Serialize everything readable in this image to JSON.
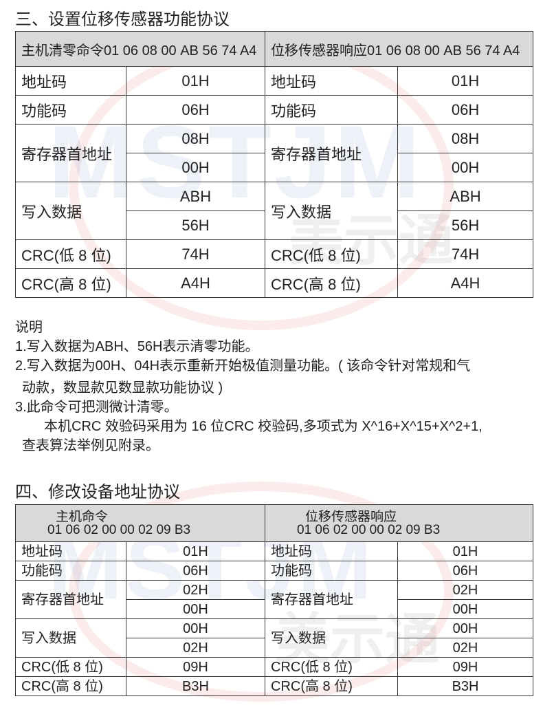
{
  "watermark": {
    "latin": "MSTJM",
    "cn": "美示通"
  },
  "section3": {
    "title": "三、设置位移传感器功能协议",
    "header": [
      "主机清零命令01 06 08 00 AB 56 74 A4",
      "位移传感器响应01 06 08 00 AB 56 74 A4"
    ],
    "rows": {
      "addr": "地址码",
      "addr_v": "01H",
      "func": "功能码",
      "func_v": "06H",
      "reg": "寄存器首地址",
      "reg_v1": "08H",
      "reg_v2": "00H",
      "data": "写入数据",
      "data_v1": "ABH",
      "data_v2": "56H",
      "crcl": "CRC(低 8 位)",
      "crcl_v": "74H",
      "crch": "CRC(高 8 位)",
      "crch_v": "A4H"
    }
  },
  "notes": {
    "title": "说明",
    "n1": "1.写入数据为ABH、56H表示清零功能。",
    "n2a": "2.写入数据为00H、04H表示重新开始极值测量功能。( 该命令针对常规和气",
    "n2b": "动款，数显款见数显款功能协议 )",
    "n3": "3.此命令可把测微计清零。",
    "n4a": "本机CRC 效验码采用为 16 位CRC 校验码,多项式为 X^16+X^15+X^2+1,",
    "n4b": "查表算法举例见附录。"
  },
  "section4": {
    "title": "四、修改设备地址协议",
    "header": [
      {
        "l1": "主机命令",
        "l2": "01 06 02 00 00 02 09 B3"
      },
      {
        "l1": "位移传感器响应",
        "l2": "01 06 02 00 00 02 09 B3"
      }
    ],
    "rows": {
      "addr": "地址码",
      "addr_v": "01H",
      "func": "功能码",
      "func_v": "06H",
      "reg": "寄存器首地址",
      "reg_v1": "02H",
      "reg_v2": "00H",
      "data": "写入数据",
      "data_v1": "00H",
      "data_v2": "02H",
      "crcl": "CRC(低 8 位)",
      "crcl_v": "09H",
      "crch": "CRC(高 8 位)",
      "crch_v": "B3H"
    }
  }
}
